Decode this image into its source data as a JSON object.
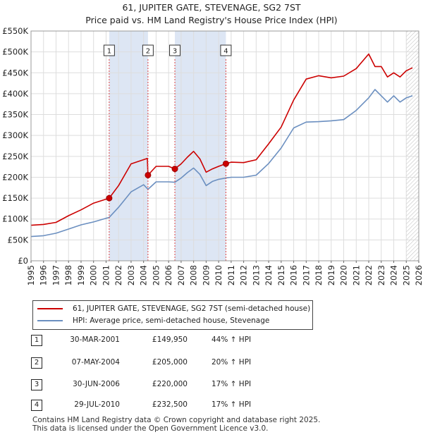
{
  "title": "61, JUPITER GATE, STEVENAGE, SG2 7ST",
  "subtitle": "Price paid vs. HM Land Registry's House Price Index (HPI)",
  "colors": {
    "property": "#cc0000",
    "hpi": "#6b8fc0",
    "shade": "#dde6f4",
    "grid": "#dddddd"
  },
  "legend": {
    "property_label": "61, JUPITER GATE, STEVENAGE, SG2 7ST (semi-detached house)",
    "hpi_label": "HPI: Average price, semi-detached house, Stevenage"
  },
  "sales": [
    {
      "num": "1",
      "date": "30-MAR-2001",
      "price": "£149,950",
      "hpi": "44% ↑ HPI"
    },
    {
      "num": "2",
      "date": "07-MAY-2004",
      "price": "£205,000",
      "hpi": "20% ↑ HPI"
    },
    {
      "num": "3",
      "date": "30-JUN-2006",
      "price": "£220,000",
      "hpi": "17% ↑ HPI"
    },
    {
      "num": "4",
      "date": "29-JUL-2010",
      "price": "£232,500",
      "hpi": "17% ↑ HPI"
    }
  ],
  "footer": {
    "line1": "Contains HM Land Registry data © Crown copyright and database right 2025.",
    "line2": "This data is licensed under the Open Government Licence v3.0."
  },
  "chart_data": {
    "type": "line",
    "title": "61, JUPITER GATE, STEVENAGE, SG2 7ST",
    "subtitle": "Price paid vs. HM Land Registry's House Price Index (HPI)",
    "xlabel": "",
    "ylabel": "",
    "xlim": [
      1995,
      2026
    ],
    "ylim": [
      0,
      550000
    ],
    "y_ticks": [
      0,
      50000,
      100000,
      150000,
      200000,
      250000,
      300000,
      350000,
      400000,
      450000,
      500000,
      550000
    ],
    "y_tick_labels": [
      "£0",
      "£50K",
      "£100K",
      "£150K",
      "£200K",
      "£250K",
      "£300K",
      "£350K",
      "£400K",
      "£450K",
      "£500K",
      "£550K"
    ],
    "x_ticks": [
      1995,
      1996,
      1997,
      1998,
      1999,
      2000,
      2001,
      2002,
      2003,
      2004,
      2005,
      2006,
      2007,
      2008,
      2009,
      2010,
      2011,
      2012,
      2013,
      2014,
      2015,
      2016,
      2017,
      2018,
      2019,
      2020,
      2021,
      2022,
      2023,
      2024,
      2025,
      2026
    ],
    "grid": true,
    "shaded_periods": [
      [
        2001.25,
        2004.35
      ],
      [
        2006.5,
        2010.58
      ]
    ],
    "hatched_from": 2025.0,
    "series": [
      {
        "name": "61, JUPITER GATE, STEVENAGE, SG2 7ST (semi-detached house)",
        "x": [
          1995.0,
          1996.0,
          1997.0,
          1998.0,
          1999.0,
          2000.0,
          2001.25,
          2002.0,
          2003.0,
          2004.3,
          2004.35,
          2005.0,
          2006.0,
          2006.5,
          2007.0,
          2007.5,
          2008.0,
          2008.5,
          2009.0,
          2009.5,
          2010.0,
          2010.58,
          2011.0,
          2012.0,
          2013.0,
          2014.0,
          2015.0,
          2016.0,
          2017.0,
          2018.0,
          2019.0,
          2020.0,
          2021.0,
          2022.0,
          2022.5,
          2023.0,
          2023.5,
          2024.0,
          2024.5,
          2025.0,
          2025.5
        ],
        "values": [
          85000,
          87000,
          92000,
          108000,
          122000,
          138000,
          149950,
          180000,
          232000,
          245000,
          205000,
          226000,
          226000,
          220000,
          232000,
          248000,
          262000,
          244000,
          212000,
          220000,
          226000,
          232500,
          236000,
          235000,
          242000,
          280000,
          320000,
          385000,
          435000,
          443000,
          438000,
          442000,
          460000,
          495000,
          465000,
          465000,
          440000,
          450000,
          440000,
          455000,
          462000
        ]
      },
      {
        "name": "HPI: Average price, semi-detached house, Stevenage",
        "x": [
          1995.0,
          1996.0,
          1997.0,
          1998.0,
          1999.0,
          2000.0,
          2001.25,
          2002.0,
          2003.0,
          2004.0,
          2004.35,
          2005.0,
          2006.0,
          2006.5,
          2007.0,
          2007.5,
          2008.0,
          2008.5,
          2009.0,
          2009.5,
          2010.0,
          2010.58,
          2011.0,
          2012.0,
          2013.0,
          2014.0,
          2015.0,
          2016.0,
          2017.0,
          2018.0,
          2019.0,
          2020.0,
          2021.0,
          2022.0,
          2022.5,
          2023.0,
          2023.5,
          2024.0,
          2024.5,
          2025.0,
          2025.5
        ],
        "values": [
          58000,
          60000,
          66000,
          76000,
          86000,
          93000,
          104000,
          128000,
          165000,
          182000,
          171000,
          189000,
          189000,
          188000,
          198000,
          211000,
          222000,
          207000,
          180000,
          190000,
          195000,
          198000,
          200000,
          200000,
          205000,
          233000,
          270000,
          318000,
          332000,
          333000,
          335000,
          338000,
          360000,
          390000,
          410000,
          395000,
          380000,
          395000,
          380000,
          390000,
          395000
        ]
      }
    ],
    "markers": [
      {
        "label": "1",
        "x": 2001.25,
        "value": 149950
      },
      {
        "label": "2",
        "x": 2004.35,
        "value": 205000
      },
      {
        "label": "3",
        "x": 2006.5,
        "value": 220000
      },
      {
        "label": "4",
        "x": 2010.58,
        "value": 232500
      }
    ]
  }
}
